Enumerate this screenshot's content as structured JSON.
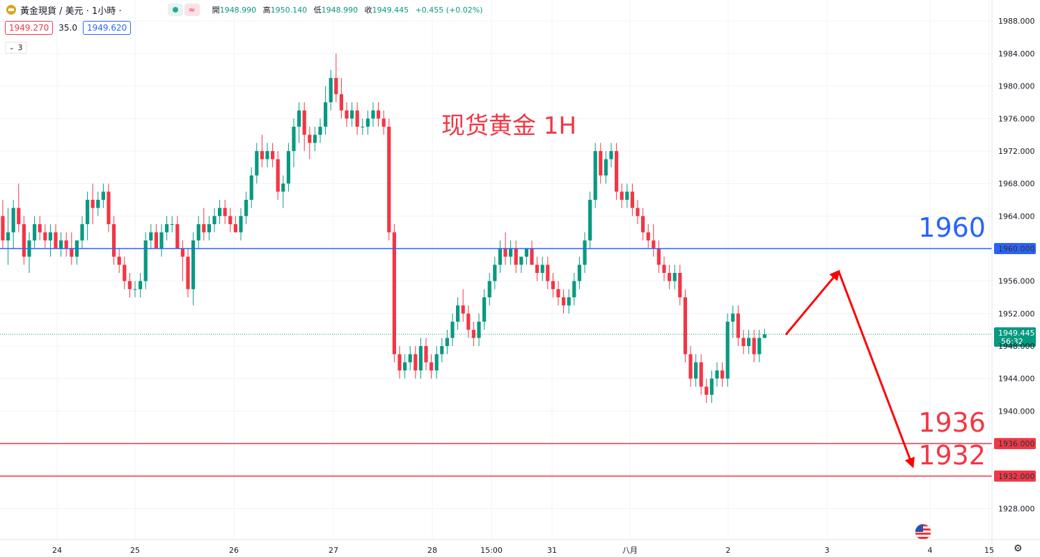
{
  "header": {
    "title": "黃金現貨 / 美元 · 1小時 ·",
    "wave_symbol": "≈",
    "ohlc": [
      {
        "k": "開",
        "v": "1948.990"
      },
      {
        "k": "高",
        "v": "1950.140"
      },
      {
        "k": "低",
        "v": "1948.990"
      },
      {
        "k": "收",
        "v": "1949.445"
      }
    ],
    "change": "+0.455 (+0.02%)"
  },
  "bid_ask": {
    "bid": "1949.270",
    "spread": "35.0",
    "ask": "1949.620"
  },
  "collapse_count": "3",
  "colors": {
    "up": "#089981",
    "down": "#f23645",
    "blue_line": "#2962ff",
    "red_line": "#f23645"
  },
  "chart_data": {
    "type": "candlestick",
    "title": "现货黄金 1H",
    "ylim": [
      1925,
      1989
    ],
    "y_ticks": [
      1928,
      1932,
      1936,
      1940,
      1944,
      1948,
      1952,
      1956,
      1960,
      1964,
      1968,
      1972,
      1976,
      1980,
      1984,
      1988
    ],
    "x_tick_labels": [
      "24",
      "25",
      "26",
      "27",
      "28",
      "15:00",
      "31",
      "八月",
      "2",
      "3",
      "4",
      "15"
    ],
    "current_price": {
      "value": "1949.445",
      "countdown": "56:32"
    },
    "horizontal_lines": [
      {
        "value": 1960,
        "label": "1960",
        "price_label": "1960.000",
        "color": "blue"
      },
      {
        "value": 1936,
        "label": "1936",
        "price_label": "1936.000",
        "color": "red"
      },
      {
        "value": 1932,
        "label": "1932",
        "price_label": "1932.000",
        "color": "red"
      }
    ],
    "forecast_path": [
      {
        "bar": 148,
        "price": 1949.4
      },
      {
        "bar": 158,
        "price": 1957.2
      },
      {
        "bar": 172,
        "price": 1933.2
      }
    ],
    "candles": [
      [
        1964,
        1966,
        1960,
        1961
      ],
      [
        1961,
        1965,
        1958,
        1962
      ],
      [
        1962,
        1966,
        1960,
        1965
      ],
      [
        1965,
        1968,
        1962,
        1963
      ],
      [
        1963,
        1964,
        1958,
        1959
      ],
      [
        1959,
        1962,
        1957,
        1961
      ],
      [
        1961,
        1964,
        1960,
        1963
      ],
      [
        1963,
        1964,
        1961,
        1962
      ],
      [
        1962,
        1963,
        1960,
        1961
      ],
      [
        1961,
        1963,
        1959,
        1962
      ],
      [
        1962,
        1963,
        1960,
        1960
      ],
      [
        1960,
        1962,
        1959,
        1961
      ],
      [
        1961,
        1962,
        1959,
        1960
      ],
      [
        1960,
        1962,
        1958,
        1959
      ],
      [
        1959,
        1961,
        1958,
        1961
      ],
      [
        1961,
        1964,
        1960,
        1963
      ],
      [
        1963,
        1967,
        1961,
        1966
      ],
      [
        1966,
        1968,
        1963,
        1965
      ],
      [
        1965,
        1967,
        1964,
        1966
      ],
      [
        1966,
        1968,
        1965,
        1967
      ],
      [
        1967,
        1968,
        1962,
        1963
      ],
      [
        1963,
        1964,
        1958,
        1959
      ],
      [
        1959,
        1960,
        1957,
        1958
      ],
      [
        1958,
        1959,
        1955,
        1956
      ],
      [
        1956,
        1957,
        1954,
        1955
      ],
      [
        1955,
        1956,
        1954,
        1955
      ],
      [
        1955,
        1957,
        1954,
        1956
      ],
      [
        1956,
        1962,
        1955,
        1961
      ],
      [
        1961,
        1963,
        1960,
        1962
      ],
      [
        1962,
        1963,
        1960,
        1960
      ],
      [
        1960,
        1963,
        1959,
        1962
      ],
      [
        1962,
        1964,
        1961,
        1963
      ],
      [
        1963,
        1964,
        1962,
        1963
      ],
      [
        1963,
        1964,
        1960,
        1960
      ],
      [
        1960,
        1961,
        1956,
        1959
      ],
      [
        1959,
        1960,
        1954,
        1955
      ],
      [
        1955,
        1962,
        1953,
        1961
      ],
      [
        1961,
        1964,
        1960,
        1963
      ],
      [
        1963,
        1965,
        1961,
        1962
      ],
      [
        1962,
        1964,
        1961,
        1963
      ],
      [
        1963,
        1965,
        1962,
        1964
      ],
      [
        1964,
        1966,
        1963,
        1965
      ],
      [
        1965,
        1966,
        1963,
        1964
      ],
      [
        1964,
        1965,
        1962,
        1963
      ],
      [
        1963,
        1964,
        1962,
        1962
      ],
      [
        1962,
        1965,
        1961,
        1964
      ],
      [
        1964,
        1967,
        1963,
        1966
      ],
      [
        1966,
        1970,
        1965,
        1969
      ],
      [
        1969,
        1973,
        1968,
        1972
      ],
      [
        1972,
        1974,
        1970,
        1971
      ],
      [
        1971,
        1973,
        1970,
        1972
      ],
      [
        1972,
        1973,
        1970,
        1971
      ],
      [
        1971,
        1972,
        1966,
        1967
      ],
      [
        1967,
        1969,
        1965,
        1968
      ],
      [
        1968,
        1973,
        1967,
        1972
      ],
      [
        1972,
        1976,
        1970,
        1975
      ],
      [
        1975,
        1978,
        1973,
        1977
      ],
      [
        1977,
        1978,
        1972,
        1974
      ],
      [
        1974,
        1975,
        1971,
        1973
      ],
      [
        1973,
        1975,
        1972,
        1974
      ],
      [
        1974,
        1976,
        1973,
        1975
      ],
      [
        1975,
        1980,
        1974,
        1978
      ],
      [
        1978,
        1982,
        1977,
        1981
      ],
      [
        1981,
        1984,
        1978,
        1979
      ],
      [
        1979,
        1981,
        1976,
        1977
      ],
      [
        1977,
        1978,
        1975,
        1976
      ],
      [
        1976,
        1978,
        1975,
        1977
      ],
      [
        1977,
        1978,
        1974,
        1975
      ],
      [
        1975,
        1976,
        1974,
        1975
      ],
      [
        1975,
        1977,
        1974,
        1976
      ],
      [
        1976,
        1978,
        1975,
        1977
      ],
      [
        1977,
        1978,
        1975,
        1976
      ],
      [
        1976,
        1977,
        1974,
        1975
      ],
      [
        1975,
        1976,
        1961,
        1962
      ],
      [
        1962,
        1963,
        1946,
        1947
      ],
      [
        1947,
        1948,
        1944,
        1945
      ],
      [
        1945,
        1947,
        1944,
        1946
      ],
      [
        1946,
        1948,
        1945,
        1947
      ],
      [
        1947,
        1948,
        1944,
        1945
      ],
      [
        1945,
        1949,
        1944,
        1948
      ],
      [
        1948,
        1949,
        1945,
        1946
      ],
      [
        1946,
        1947,
        1944,
        1945
      ],
      [
        1945,
        1948,
        1944,
        1947
      ],
      [
        1947,
        1949,
        1946,
        1948
      ],
      [
        1948,
        1950,
        1947,
        1949
      ],
      [
        1949,
        1952,
        1948,
        1951
      ],
      [
        1951,
        1954,
        1950,
        1953
      ],
      [
        1953,
        1955,
        1951,
        1952
      ],
      [
        1952,
        1953,
        1949,
        1950
      ],
      [
        1950,
        1951,
        1948,
        1949
      ],
      [
        1949,
        1952,
        1948,
        1951
      ],
      [
        1951,
        1955,
        1950,
        1954
      ],
      [
        1954,
        1957,
        1953,
        1956
      ],
      [
        1956,
        1959,
        1955,
        1958
      ],
      [
        1958,
        1961,
        1957,
        1960
      ],
      [
        1960,
        1962,
        1958,
        1959
      ],
      [
        1959,
        1961,
        1958,
        1960
      ],
      [
        1960,
        1961,
        1957,
        1958
      ],
      [
        1958,
        1959,
        1957,
        1959
      ],
      [
        1959,
        1960,
        1958,
        1960
      ],
      [
        1960,
        1961,
        1958,
        1958
      ],
      [
        1958,
        1959,
        1956,
        1957
      ],
      [
        1957,
        1959,
        1956,
        1958
      ],
      [
        1958,
        1959,
        1955,
        1956
      ],
      [
        1956,
        1957,
        1954,
        1955
      ],
      [
        1955,
        1956,
        1953,
        1954
      ],
      [
        1954,
        1955,
        1952,
        1953
      ],
      [
        1953,
        1955,
        1952,
        1954
      ],
      [
        1954,
        1957,
        1953,
        1956
      ],
      [
        1956,
        1959,
        1955,
        1958
      ],
      [
        1958,
        1962,
        1957,
        1961
      ],
      [
        1961,
        1967,
        1960,
        1966
      ],
      [
        1966,
        1973,
        1965,
        1972
      ],
      [
        1972,
        1973,
        1968,
        1969
      ],
      [
        1969,
        1972,
        1968,
        1971
      ],
      [
        1971,
        1973,
        1970,
        1972
      ],
      [
        1972,
        1973,
        1966,
        1967
      ],
      [
        1967,
        1968,
        1965,
        1966
      ],
      [
        1966,
        1968,
        1965,
        1967
      ],
      [
        1967,
        1968,
        1964,
        1965
      ],
      [
        1965,
        1966,
        1963,
        1964
      ],
      [
        1964,
        1965,
        1961,
        1962
      ],
      [
        1962,
        1963,
        1960,
        1961
      ],
      [
        1961,
        1963,
        1959,
        1960
      ],
      [
        1960,
        1961,
        1957,
        1958
      ],
      [
        1958,
        1959,
        1956,
        1957
      ],
      [
        1957,
        1958,
        1955,
        1956
      ],
      [
        1956,
        1958,
        1955,
        1957
      ],
      [
        1957,
        1958,
        1953,
        1954
      ],
      [
        1954,
        1955,
        1946,
        1947
      ],
      [
        1947,
        1948,
        1943,
        1944
      ],
      [
        1944,
        1947,
        1943,
        1946
      ],
      [
        1946,
        1947,
        1942,
        1943
      ],
      [
        1943,
        1944,
        1941,
        1942
      ],
      [
        1942,
        1945,
        1941,
        1944
      ],
      [
        1944,
        1946,
        1943,
        1945
      ],
      [
        1945,
        1946,
        1943,
        1944
      ],
      [
        1944,
        1952,
        1943,
        1951
      ],
      [
        1951,
        1953,
        1949,
        1952
      ],
      [
        1952,
        1953,
        1948,
        1949
      ],
      [
        1949,
        1950,
        1947,
        1948
      ],
      [
        1948,
        1950,
        1947,
        1949
      ],
      [
        1949,
        1950,
        1946,
        1947
      ],
      [
        1947,
        1950,
        1946,
        1949
      ],
      [
        1948.99,
        1950.14,
        1948.99,
        1949.445
      ]
    ]
  }
}
